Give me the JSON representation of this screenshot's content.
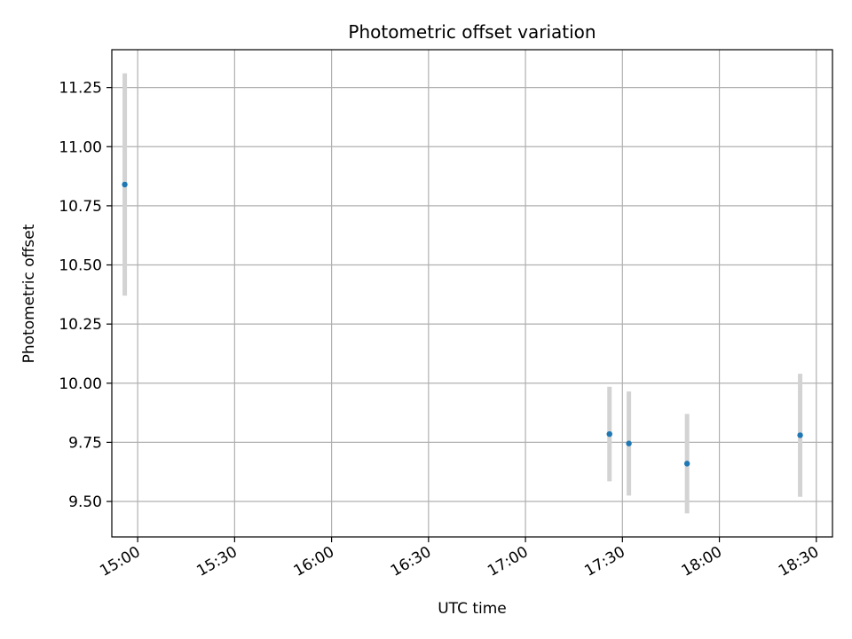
{
  "chart_data": {
    "type": "scatter",
    "title": "Photometric offset variation",
    "xlabel": "UTC time",
    "ylabel": "Photometric offset",
    "x_axis_type": "time",
    "xlim": [
      "14:52",
      "18:35"
    ],
    "ylim": [
      9.35,
      11.41
    ],
    "xticks": [
      "15:00",
      "15:30",
      "16:00",
      "16:30",
      "17:00",
      "17:30",
      "18:00",
      "18:30"
    ],
    "yticks": [
      9.5,
      9.75,
      10.0,
      10.25,
      10.5,
      10.75,
      11.0,
      11.25
    ],
    "ytick_labels": [
      "9.50",
      "9.75",
      "10.00",
      "10.25",
      "10.50",
      "10.75",
      "11.00",
      "11.25"
    ],
    "grid": true,
    "legend": "none",
    "series": [
      {
        "points": [
          {
            "x": "14:56",
            "y": 10.84,
            "err": 0.47
          },
          {
            "x": "17:26",
            "y": 9.785,
            "err": 0.2
          },
          {
            "x": "17:32",
            "y": 9.745,
            "err": 0.22
          },
          {
            "x": "17:50",
            "y": 9.66,
            "err": 0.21
          },
          {
            "x": "18:25",
            "y": 9.78,
            "err": 0.26
          }
        ]
      }
    ],
    "colors": {
      "point": "#1f77b4",
      "errorbar": "#d3d3d3",
      "grid": "#b0b0b0",
      "axis": "#000000"
    }
  }
}
